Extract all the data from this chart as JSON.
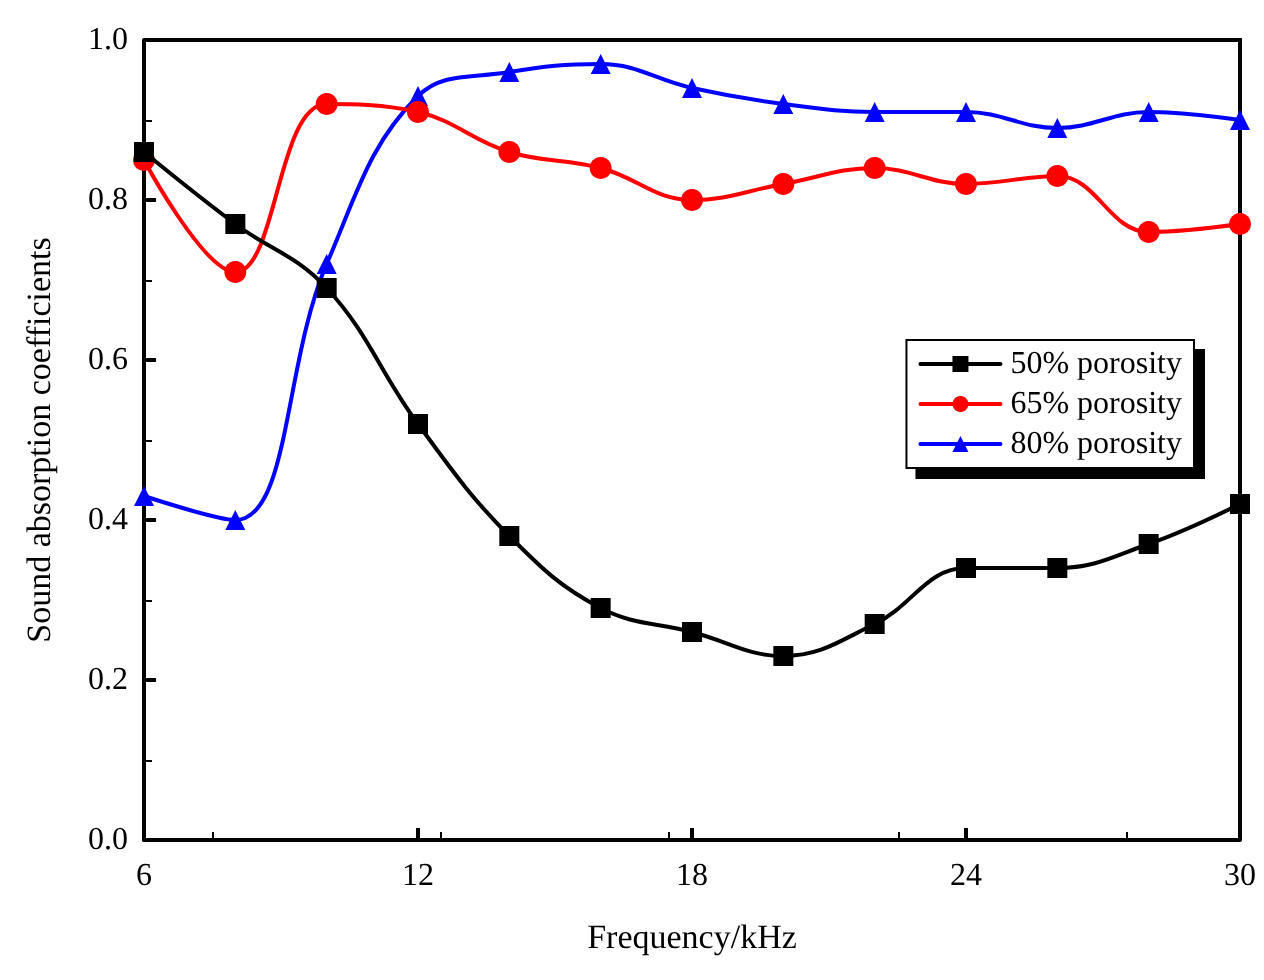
{
  "chart_data": {
    "type": "line",
    "xlabel": "Frequency/kHz",
    "ylabel": "Sound absorption coefficients",
    "x": [
      6,
      8,
      10,
      12,
      14,
      16,
      18,
      20,
      22,
      24,
      26,
      28,
      30
    ],
    "series": [
      {
        "name": "50% porosity",
        "color": "#000000",
        "marker": "square",
        "values": [
          0.86,
          0.77,
          0.69,
          0.52,
          0.38,
          0.29,
          0.26,
          0.23,
          0.27,
          0.34,
          0.34,
          0.37,
          0.42
        ]
      },
      {
        "name": "65% porosity",
        "color": "#ff0000",
        "marker": "circle",
        "values": [
          0.85,
          0.71,
          0.92,
          0.91,
          0.86,
          0.84,
          0.8,
          0.82,
          0.84,
          0.82,
          0.83,
          0.76,
          0.77
        ]
      },
      {
        "name": "80% porosity",
        "color": "#0000ff",
        "marker": "triangle",
        "values": [
          0.43,
          0.4,
          0.72,
          0.93,
          0.96,
          0.97,
          0.94,
          0.92,
          0.91,
          0.91,
          0.89,
          0.91,
          0.9
        ]
      }
    ],
    "xlim": [
      6,
      30
    ],
    "xticks": [
      6,
      12,
      18,
      24,
      30
    ],
    "ylim": [
      0,
      1
    ],
    "yticks": [
      {
        "value": 0,
        "label": "0.0"
      },
      {
        "value": 0.2,
        "label": "0.2"
      },
      {
        "value": 0.4,
        "label": "0.4"
      },
      {
        "value": 0.6,
        "label": "0.6"
      },
      {
        "value": 0.8,
        "label": "0.8"
      },
      {
        "value": 1,
        "label": "1.0"
      }
    ],
    "grid": false,
    "legend": "right",
    "line_style": "solid"
  }
}
